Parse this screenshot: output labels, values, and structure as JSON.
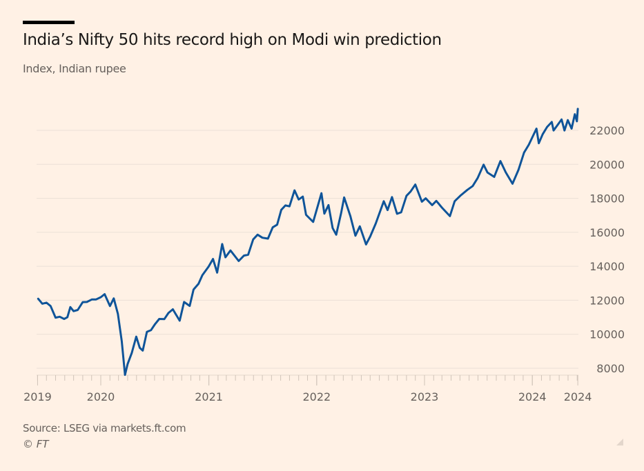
{
  "header": {
    "title": "India’s Nifty 50 hits record high on Modi win prediction",
    "subtitle": "Index, Indian rupee"
  },
  "footer": {
    "source": "Source: LSEG via markets.ft.com",
    "copyright": "© FT"
  },
  "colors": {
    "background": "#fff1e5",
    "line": "#0f5499",
    "grid": "#ebe0d6",
    "text": "#66605c"
  },
  "chart_data": {
    "type": "line",
    "title": "India’s Nifty 50 hits record high on Modi win prediction",
    "subtitle": "Index, Indian rupee",
    "xlabel": "",
    "ylabel": "",
    "ylim": [
      8000,
      22000
    ],
    "yticks": [
      "8000",
      "10000",
      "12000",
      "14000",
      "16000",
      "18000",
      "20000",
      "22000"
    ],
    "y_axis_position": "right",
    "grid": true,
    "xlim": [
      "2019-06-01",
      "2024-06-03"
    ],
    "xticks": [
      {
        "date": "2019-06-01",
        "label": "2019"
      },
      {
        "date": "2020-01-01",
        "label": "2020"
      },
      {
        "date": "2021-01-01",
        "label": "2021"
      },
      {
        "date": "2022-01-01",
        "label": "2022"
      },
      {
        "date": "2023-01-01",
        "label": "2023"
      },
      {
        "date": "2024-01-01",
        "label": "2024"
      },
      {
        "date": "2024-06-03",
        "label": "2024"
      }
    ],
    "series": [
      {
        "x": [
          "2019-06-03",
          "2019-06-17",
          "2019-07-01",
          "2019-07-15",
          "2019-08-01",
          "2019-08-15",
          "2019-08-30",
          "2019-09-10",
          "2019-09-20",
          "2019-10-01",
          "2019-10-15",
          "2019-11-01",
          "2019-11-15",
          "2019-12-02",
          "2019-12-16",
          "2020-01-01",
          "2020-01-14",
          "2020-02-01",
          "2020-02-14",
          "2020-02-28",
          "2020-03-12",
          "2020-03-23",
          "2020-04-01",
          "2020-04-15",
          "2020-04-30",
          "2020-05-12",
          "2020-05-22",
          "2020-06-05",
          "2020-06-19",
          "2020-07-03",
          "2020-07-17",
          "2020-08-03",
          "2020-08-17",
          "2020-09-01",
          "2020-09-24",
          "2020-10-09",
          "2020-10-28",
          "2020-11-10",
          "2020-11-27",
          "2020-12-10",
          "2020-12-31",
          "2021-01-15",
          "2021-01-29",
          "2021-02-15",
          "2021-02-26",
          "2021-03-15",
          "2021-04-12",
          "2021-04-30",
          "2021-05-14",
          "2021-05-31",
          "2021-06-15",
          "2021-07-01",
          "2021-07-20",
          "2021-08-05",
          "2021-08-20",
          "2021-09-03",
          "2021-09-17",
          "2021-10-01",
          "2021-10-18",
          "2021-11-01",
          "2021-11-15",
          "2021-11-26",
          "2021-12-20",
          "2022-01-17",
          "2022-01-27",
          "2022-02-10",
          "2022-02-24",
          "2022-03-08",
          "2022-03-25",
          "2022-04-04",
          "2022-04-25",
          "2022-05-12",
          "2022-05-27",
          "2022-06-17",
          "2022-07-01",
          "2022-07-20",
          "2022-08-16",
          "2022-08-29",
          "2022-09-13",
          "2022-09-30",
          "2022-10-14",
          "2022-11-01",
          "2022-11-15",
          "2022-12-01",
          "2022-12-23",
          "2023-01-05",
          "2023-01-27",
          "2023-02-10",
          "2023-03-01",
          "2023-03-28",
          "2023-04-13",
          "2023-05-02",
          "2023-05-26",
          "2023-06-13",
          "2023-06-30",
          "2023-07-20",
          "2023-08-02",
          "2023-08-25",
          "2023-09-15",
          "2023-10-03",
          "2023-10-26",
          "2023-11-15",
          "2023-12-04",
          "2023-12-20",
          "2024-01-15",
          "2024-01-23",
          "2024-02-05",
          "2024-02-20",
          "2024-03-07",
          "2024-03-13",
          "2024-04-09",
          "2024-04-19",
          "2024-04-30",
          "2024-05-13",
          "2024-05-24",
          "2024-05-31",
          "2024-06-03"
        ],
        "y": [
          12090,
          11800,
          11860,
          11660,
          10980,
          11030,
          10900,
          11000,
          11600,
          11360,
          11430,
          11890,
          11900,
          12050,
          12050,
          12180,
          12360,
          11660,
          12110,
          11200,
          9590,
          7610,
          8250,
          8900,
          9860,
          9200,
          9040,
          10140,
          10240,
          10600,
          10900,
          10890,
          11250,
          11470,
          10800,
          11900,
          11670,
          12630,
          12970,
          13480,
          13980,
          14430,
          13630,
          15310,
          14530,
          14930,
          14310,
          14630,
          14680,
          15580,
          15860,
          15680,
          15630,
          16290,
          16450,
          17320,
          17580,
          17530,
          18470,
          17930,
          18100,
          17030,
          16610,
          18300,
          17100,
          17600,
          16250,
          15860,
          17150,
          18050,
          16950,
          15800,
          16350,
          15290,
          15750,
          16520,
          17830,
          17310,
          18070,
          17090,
          17180,
          18150,
          18400,
          18810,
          17800,
          18000,
          17600,
          17850,
          17450,
          16950,
          17830,
          18150,
          18500,
          18720,
          19190,
          19980,
          19520,
          19260,
          20190,
          19530,
          18860,
          19670,
          20690,
          21150,
          22100,
          21240,
          21770,
          22200,
          22490,
          21990,
          22640,
          21990,
          22600,
          22100,
          22950,
          22530,
          23260
        ]
      }
    ]
  }
}
